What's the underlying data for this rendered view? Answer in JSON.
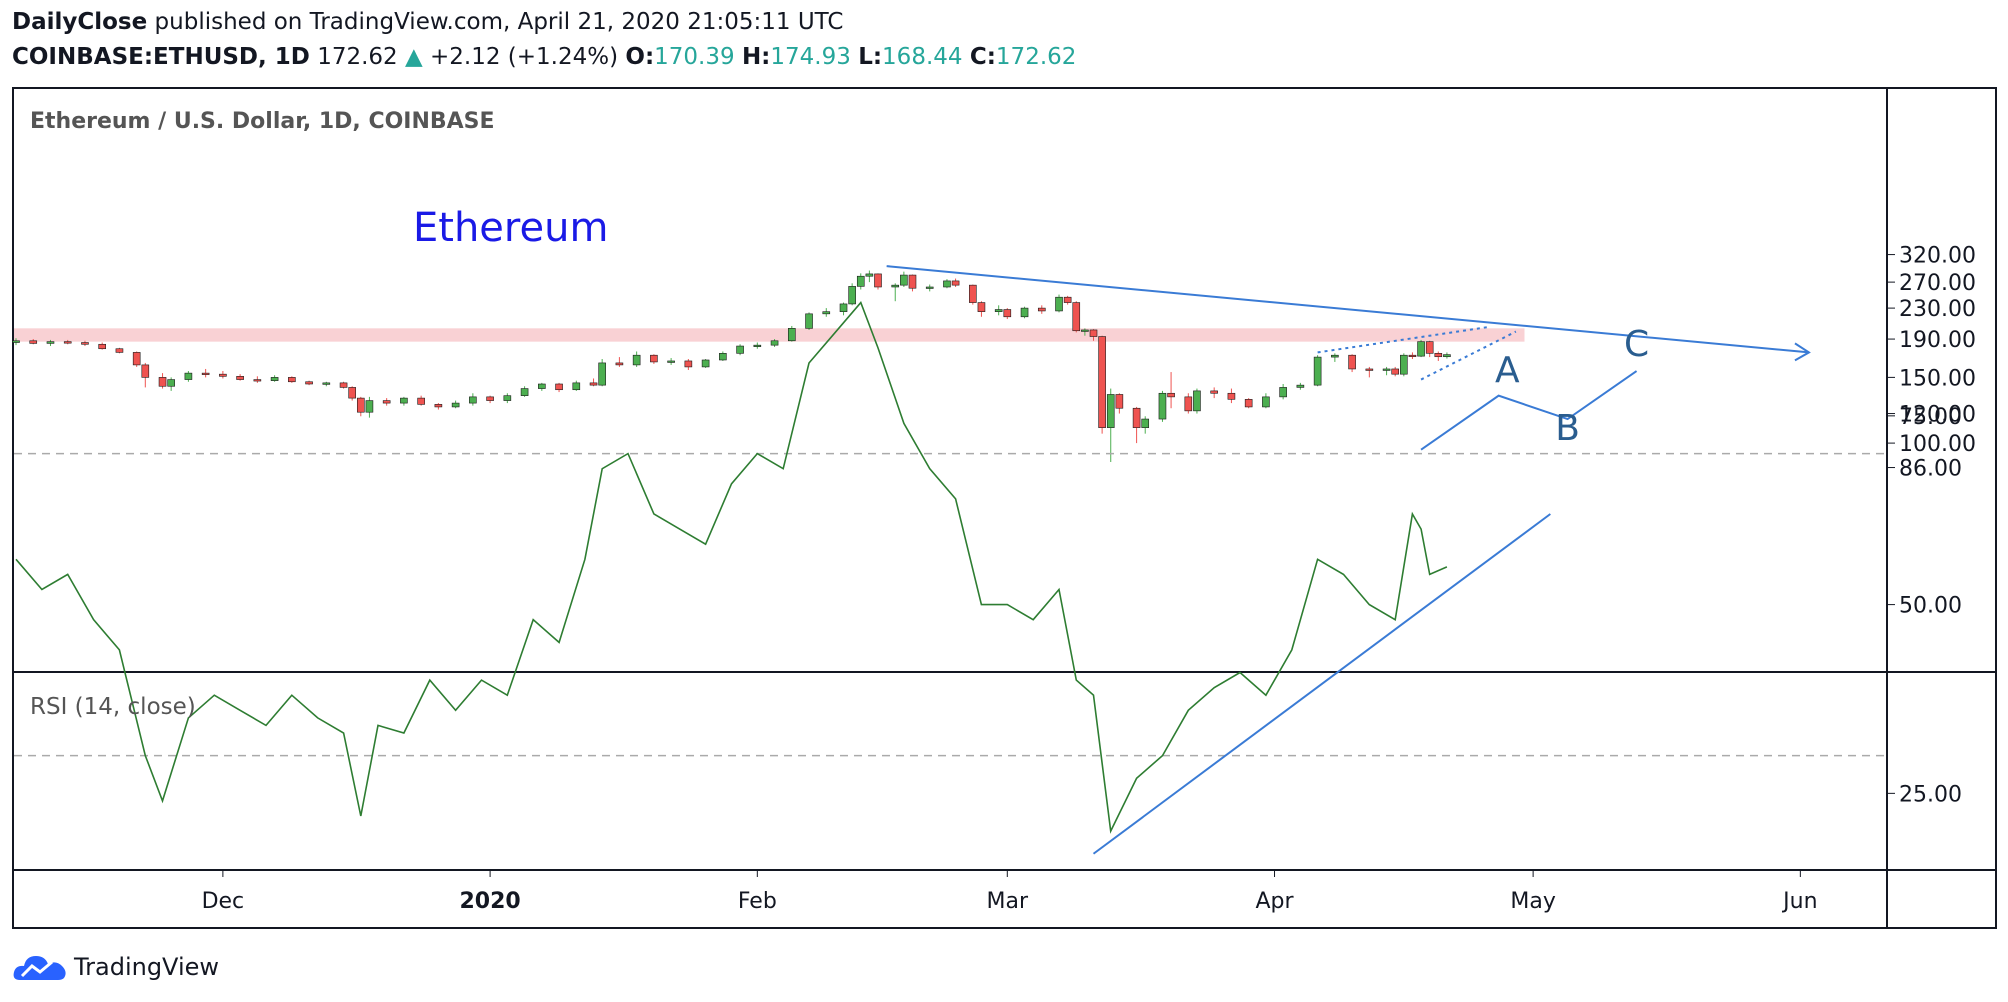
{
  "header": {
    "author": "DailyClose",
    "published_text": "published on TradingView.com, April 21, 2020 21:05:11 UTC",
    "symbol": "COINBASE:ETHUSD, 1D",
    "last": "172.62",
    "change": "+2.12 (+1.24%)",
    "o_label": "O:",
    "o_value": "170.39",
    "h_label": "H:",
    "h_value": "174.93",
    "l_label": "L:",
    "l_value": "168.44",
    "c_label": "C:",
    "c_value": "172.62"
  },
  "colors": {
    "up": "#4caf50",
    "down": "#ef5350",
    "annotation": "#3a7bd5",
    "wave_label": "#2a5d8f",
    "resistance_zone": "#f7c6c9",
    "rsi_line": "#2e7d32",
    "title_text": "#1a1ae6"
  },
  "footer": {
    "brand": "TradingView",
    "logo_icon": "tradingview-cloud-icon"
  },
  "chart_data": [
    {
      "type": "candlestick",
      "title": "Ethereum / U.S. Dollar, 1D, COINBASE",
      "annotation_text": "Ethereum",
      "y_scale": "log",
      "ylim": [
        86,
        320
      ],
      "y_ticks": [
        "320.00",
        "270.00",
        "230.00",
        "190.00",
        "150.00",
        "120.00",
        "100.00",
        "86.00"
      ],
      "x_ticks": [
        "Dec",
        "2020",
        "Feb",
        "Mar",
        "Apr",
        "May",
        "Jun"
      ],
      "x_range": [
        "2019-11-07",
        "2020-06-05"
      ],
      "resistance_zone": [
        187,
        203
      ],
      "wave_labels": [
        "A",
        "B",
        "C"
      ],
      "ohlc": [
        {
          "t": "2019-11-07",
          "o": 186,
          "h": 191,
          "l": 183,
          "c": 188
        },
        {
          "t": "2019-11-09",
          "o": 188,
          "h": 190,
          "l": 184,
          "c": 185
        },
        {
          "t": "2019-11-11",
          "o": 185,
          "h": 189,
          "l": 182,
          "c": 187
        },
        {
          "t": "2019-11-13",
          "o": 187,
          "h": 189,
          "l": 184,
          "c": 186
        },
        {
          "t": "2019-11-15",
          "o": 186,
          "h": 188,
          "l": 182,
          "c": 184
        },
        {
          "t": "2019-11-17",
          "o": 184,
          "h": 186,
          "l": 178,
          "c": 179
        },
        {
          "t": "2019-11-19",
          "o": 179,
          "h": 180,
          "l": 174,
          "c": 175
        },
        {
          "t": "2019-11-21",
          "o": 175,
          "h": 176,
          "l": 160,
          "c": 162
        },
        {
          "t": "2019-11-22",
          "o": 162,
          "h": 164,
          "l": 141,
          "c": 150
        },
        {
          "t": "2019-11-24",
          "o": 150,
          "h": 154,
          "l": 140,
          "c": 142
        },
        {
          "t": "2019-11-25",
          "o": 142,
          "h": 150,
          "l": 138,
          "c": 148
        },
        {
          "t": "2019-11-27",
          "o": 148,
          "h": 156,
          "l": 146,
          "c": 154
        },
        {
          "t": "2019-11-29",
          "o": 154,
          "h": 158,
          "l": 150,
          "c": 153
        },
        {
          "t": "2019-12-01",
          "o": 153,
          "h": 156,
          "l": 149,
          "c": 151
        },
        {
          "t": "2019-12-03",
          "o": 151,
          "h": 153,
          "l": 147,
          "c": 148
        },
        {
          "t": "2019-12-05",
          "o": 148,
          "h": 151,
          "l": 145,
          "c": 147
        },
        {
          "t": "2019-12-07",
          "o": 147,
          "h": 152,
          "l": 146,
          "c": 150
        },
        {
          "t": "2019-12-09",
          "o": 150,
          "h": 151,
          "l": 145,
          "c": 146
        },
        {
          "t": "2019-12-11",
          "o": 146,
          "h": 147,
          "l": 143,
          "c": 144
        },
        {
          "t": "2019-12-13",
          "o": 144,
          "h": 146,
          "l": 142,
          "c": 145
        },
        {
          "t": "2019-12-15",
          "o": 145,
          "h": 146,
          "l": 140,
          "c": 141
        },
        {
          "t": "2019-12-16",
          "o": 141,
          "h": 142,
          "l": 130,
          "c": 132
        },
        {
          "t": "2019-12-17",
          "o": 132,
          "h": 133,
          "l": 118,
          "c": 121
        },
        {
          "t": "2019-12-18",
          "o": 121,
          "h": 133,
          "l": 117,
          "c": 130
        },
        {
          "t": "2019-12-20",
          "o": 130,
          "h": 132,
          "l": 126,
          "c": 128
        },
        {
          "t": "2019-12-22",
          "o": 128,
          "h": 133,
          "l": 126,
          "c": 132
        },
        {
          "t": "2019-12-24",
          "o": 132,
          "h": 134,
          "l": 126,
          "c": 127
        },
        {
          "t": "2019-12-26",
          "o": 127,
          "h": 128,
          "l": 123,
          "c": 125
        },
        {
          "t": "2019-12-28",
          "o": 125,
          "h": 130,
          "l": 124,
          "c": 128
        },
        {
          "t": "2019-12-30",
          "o": 128,
          "h": 136,
          "l": 126,
          "c": 133
        },
        {
          "t": "2020-01-01",
          "o": 133,
          "h": 134,
          "l": 128,
          "c": 130
        },
        {
          "t": "2020-01-03",
          "o": 130,
          "h": 136,
          "l": 128,
          "c": 134
        },
        {
          "t": "2020-01-05",
          "o": 134,
          "h": 142,
          "l": 133,
          "c": 140
        },
        {
          "t": "2020-01-07",
          "o": 140,
          "h": 145,
          "l": 138,
          "c": 144
        },
        {
          "t": "2020-01-09",
          "o": 144,
          "h": 145,
          "l": 137,
          "c": 139
        },
        {
          "t": "2020-01-11",
          "o": 139,
          "h": 147,
          "l": 138,
          "c": 145
        },
        {
          "t": "2020-01-13",
          "o": 145,
          "h": 149,
          "l": 142,
          "c": 143
        },
        {
          "t": "2020-01-14",
          "o": 143,
          "h": 168,
          "l": 142,
          "c": 164
        },
        {
          "t": "2020-01-16",
          "o": 164,
          "h": 170,
          "l": 160,
          "c": 162
        },
        {
          "t": "2020-01-18",
          "o": 162,
          "h": 176,
          "l": 160,
          "c": 172
        },
        {
          "t": "2020-01-20",
          "o": 172,
          "h": 173,
          "l": 163,
          "c": 165
        },
        {
          "t": "2020-01-22",
          "o": 165,
          "h": 169,
          "l": 162,
          "c": 166
        },
        {
          "t": "2020-01-24",
          "o": 166,
          "h": 168,
          "l": 157,
          "c": 160
        },
        {
          "t": "2020-01-26",
          "o": 160,
          "h": 168,
          "l": 159,
          "c": 167
        },
        {
          "t": "2020-01-28",
          "o": 167,
          "h": 176,
          "l": 166,
          "c": 174
        },
        {
          "t": "2020-01-30",
          "o": 174,
          "h": 184,
          "l": 172,
          "c": 182
        },
        {
          "t": "2020-02-01",
          "o": 182,
          "h": 186,
          "l": 179,
          "c": 183
        },
        {
          "t": "2020-02-03",
          "o": 183,
          "h": 190,
          "l": 181,
          "c": 188
        },
        {
          "t": "2020-02-05",
          "o": 188,
          "h": 206,
          "l": 187,
          "c": 203
        },
        {
          "t": "2020-02-07",
          "o": 203,
          "h": 224,
          "l": 201,
          "c": 222
        },
        {
          "t": "2020-02-09",
          "o": 222,
          "h": 230,
          "l": 218,
          "c": 225
        },
        {
          "t": "2020-02-11",
          "o": 225,
          "h": 238,
          "l": 220,
          "c": 236
        },
        {
          "t": "2020-02-12",
          "o": 236,
          "h": 268,
          "l": 234,
          "c": 263
        },
        {
          "t": "2020-02-13",
          "o": 263,
          "h": 285,
          "l": 258,
          "c": 280
        },
        {
          "t": "2020-02-14",
          "o": 280,
          "h": 290,
          "l": 270,
          "c": 284
        },
        {
          "t": "2020-02-15",
          "o": 284,
          "h": 285,
          "l": 258,
          "c": 262
        },
        {
          "t": "2020-02-17",
          "o": 262,
          "h": 268,
          "l": 240,
          "c": 265
        },
        {
          "t": "2020-02-18",
          "o": 265,
          "h": 288,
          "l": 262,
          "c": 282
        },
        {
          "t": "2020-02-19",
          "o": 282,
          "h": 283,
          "l": 255,
          "c": 260
        },
        {
          "t": "2020-02-21",
          "o": 260,
          "h": 266,
          "l": 255,
          "c": 262
        },
        {
          "t": "2020-02-23",
          "o": 262,
          "h": 275,
          "l": 260,
          "c": 272
        },
        {
          "t": "2020-02-24",
          "o": 272,
          "h": 276,
          "l": 262,
          "c": 265
        },
        {
          "t": "2020-02-26",
          "o": 265,
          "h": 266,
          "l": 235,
          "c": 238
        },
        {
          "t": "2020-02-27",
          "o": 238,
          "h": 240,
          "l": 218,
          "c": 225
        },
        {
          "t": "2020-02-29",
          "o": 225,
          "h": 234,
          "l": 220,
          "c": 228
        },
        {
          "t": "2020-03-01",
          "o": 228,
          "h": 230,
          "l": 215,
          "c": 218
        },
        {
          "t": "2020-03-03",
          "o": 218,
          "h": 232,
          "l": 216,
          "c": 230
        },
        {
          "t": "2020-03-05",
          "o": 230,
          "h": 234,
          "l": 222,
          "c": 226
        },
        {
          "t": "2020-03-07",
          "o": 226,
          "h": 250,
          "l": 224,
          "c": 246
        },
        {
          "t": "2020-03-08",
          "o": 246,
          "h": 248,
          "l": 235,
          "c": 238
        },
        {
          "t": "2020-03-09",
          "o": 238,
          "h": 240,
          "l": 198,
          "c": 200
        },
        {
          "t": "2020-03-10",
          "o": 200,
          "h": 203,
          "l": 194,
          "c": 201
        },
        {
          "t": "2020-03-11",
          "o": 201,
          "h": 202,
          "l": 188,
          "c": 193
        },
        {
          "t": "2020-03-12",
          "o": 193,
          "h": 194,
          "l": 106,
          "c": 110
        },
        {
          "t": "2020-03-13",
          "o": 110,
          "h": 140,
          "l": 89,
          "c": 135
        },
        {
          "t": "2020-03-14",
          "o": 135,
          "h": 136,
          "l": 120,
          "c": 124
        },
        {
          "t": "2020-03-16",
          "o": 124,
          "h": 125,
          "l": 100,
          "c": 110
        },
        {
          "t": "2020-03-17",
          "o": 110,
          "h": 118,
          "l": 106,
          "c": 116
        },
        {
          "t": "2020-03-19",
          "o": 116,
          "h": 138,
          "l": 114,
          "c": 136
        },
        {
          "t": "2020-03-20",
          "o": 136,
          "h": 155,
          "l": 124,
          "c": 133
        },
        {
          "t": "2020-03-22",
          "o": 133,
          "h": 136,
          "l": 120,
          "c": 122
        },
        {
          "t": "2020-03-23",
          "o": 122,
          "h": 140,
          "l": 120,
          "c": 138
        },
        {
          "t": "2020-03-25",
          "o": 138,
          "h": 141,
          "l": 132,
          "c": 136
        },
        {
          "t": "2020-03-27",
          "o": 136,
          "h": 140,
          "l": 128,
          "c": 131
        },
        {
          "t": "2020-03-29",
          "o": 131,
          "h": 132,
          "l": 124,
          "c": 125
        },
        {
          "t": "2020-03-31",
          "o": 125,
          "h": 136,
          "l": 124,
          "c": 133
        },
        {
          "t": "2020-04-02",
          "o": 133,
          "h": 144,
          "l": 131,
          "c": 141
        },
        {
          "t": "2020-04-04",
          "o": 141,
          "h": 145,
          "l": 139,
          "c": 143
        },
        {
          "t": "2020-04-06",
          "o": 143,
          "h": 172,
          "l": 142,
          "c": 170
        },
        {
          "t": "2020-04-08",
          "o": 170,
          "h": 174,
          "l": 165,
          "c": 172
        },
        {
          "t": "2020-04-10",
          "o": 172,
          "h": 173,
          "l": 155,
          "c": 158
        },
        {
          "t": "2020-04-12",
          "o": 158,
          "h": 160,
          "l": 150,
          "c": 157
        },
        {
          "t": "2020-04-14",
          "o": 157,
          "h": 160,
          "l": 152,
          "c": 158
        },
        {
          "t": "2020-04-15",
          "o": 158,
          "h": 160,
          "l": 151,
          "c": 153
        },
        {
          "t": "2020-04-16",
          "o": 153,
          "h": 174,
          "l": 151,
          "c": 172
        },
        {
          "t": "2020-04-17",
          "o": 172,
          "h": 175,
          "l": 168,
          "c": 171
        },
        {
          "t": "2020-04-18",
          "o": 171,
          "h": 189,
          "l": 170,
          "c": 187
        },
        {
          "t": "2020-04-19",
          "o": 187,
          "h": 188,
          "l": 170,
          "c": 174
        },
        {
          "t": "2020-04-20",
          "o": 174,
          "h": 176,
          "l": 166,
          "c": 170.39
        },
        {
          "t": "2020-04-21",
          "o": 170.39,
          "h": 174.93,
          "l": 168.44,
          "c": 172.62
        }
      ]
    },
    {
      "type": "line",
      "title": "RSI (14, close)",
      "ylim": [
        15,
        95
      ],
      "y_ticks": [
        "75.00",
        "50.00",
        "25.00"
      ],
      "bands": [
        70,
        30
      ],
      "series": [
        {
          "x": [
            "2019-11-07",
            "2019-11-10",
            "2019-11-13",
            "2019-11-16",
            "2019-11-19",
            "2019-11-22",
            "2019-11-24",
            "2019-11-27",
            "2019-11-30",
            "2019-12-03",
            "2019-12-06",
            "2019-12-09",
            "2019-12-12",
            "2019-12-15",
            "2019-12-17",
            "2019-12-19",
            "2019-12-22",
            "2019-12-25",
            "2019-12-28",
            "2019-12-31",
            "2020-01-03",
            "2020-01-06",
            "2020-01-09",
            "2020-01-12",
            "2020-01-14",
            "2020-01-17",
            "2020-01-20",
            "2020-01-23",
            "2020-01-26",
            "2020-01-29",
            "2020-02-01",
            "2020-02-04",
            "2020-02-07",
            "2020-02-10",
            "2020-02-13",
            "2020-02-15",
            "2020-02-18",
            "2020-02-21",
            "2020-02-24",
            "2020-02-27",
            "2020-03-01",
            "2020-03-04",
            "2020-03-07",
            "2020-03-09",
            "2020-03-11",
            "2020-03-13",
            "2020-03-16",
            "2020-03-19",
            "2020-03-22",
            "2020-03-25",
            "2020-03-28",
            "2020-03-31",
            "2020-04-03",
            "2020-04-06",
            "2020-04-09",
            "2020-04-12",
            "2020-04-15",
            "2020-04-17",
            "2020-04-18",
            "2020-04-19",
            "2020-04-21"
          ],
          "values": [
            56,
            52,
            54,
            48,
            44,
            30,
            24,
            35,
            38,
            36,
            34,
            38,
            35,
            33,
            22,
            34,
            33,
            40,
            36,
            40,
            38,
            48,
            45,
            56,
            68,
            70,
            62,
            60,
            58,
            66,
            70,
            68,
            82,
            86,
            90,
            84,
            74,
            68,
            64,
            50,
            50,
            48,
            52,
            40,
            38,
            20,
            27,
            30,
            36,
            39,
            41,
            38,
            44,
            56,
            54,
            50,
            48,
            62,
            60,
            54,
            55
          ]
        }
      ],
      "trendline_points": [
        [
          "2020-03-11",
          17
        ],
        [
          "2020-05-03",
          62
        ]
      ]
    }
  ]
}
